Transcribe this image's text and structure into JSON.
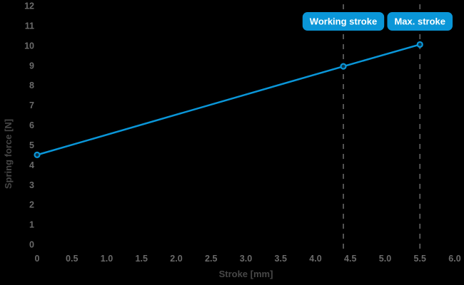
{
  "figure": {
    "background": "#000000"
  },
  "chart_data": {
    "type": "line",
    "title": "",
    "xlabel": "Stroke [mm]",
    "ylabel": "Spring force [N]",
    "xlim": [
      0,
      6.0
    ],
    "ylim": [
      0,
      12
    ],
    "grid": false,
    "legend": "none",
    "x_ticks": {
      "values": [
        0,
        0.5,
        1.0,
        1.5,
        2.0,
        2.5,
        3.0,
        3.5,
        4.0,
        4.5,
        5.0,
        5.5,
        6.0
      ],
      "labels": [
        "0",
        "0.5",
        "1.0",
        "1.5",
        "2.0",
        "2.5",
        "3.0",
        "3.5",
        "4.0",
        "4.5",
        "5.0",
        "5.5",
        "6.0"
      ]
    },
    "y_ticks": {
      "values": [
        0,
        1,
        2,
        3,
        4,
        5,
        6,
        7,
        8,
        9,
        10,
        11,
        12
      ],
      "labels": [
        "0",
        "1",
        "2",
        "3",
        "4",
        "5",
        "6",
        "7",
        "8",
        "9",
        "10",
        "11",
        "12"
      ]
    },
    "series": [
      {
        "name": "spring-force",
        "x": [
          0,
          4.4,
          5.5
        ],
        "y": [
          4.5,
          8.95,
          10.05
        ],
        "marker": "circle"
      }
    ],
    "annotations": [
      {
        "id": "working-stroke",
        "label": "Working stroke",
        "x": 4.4
      },
      {
        "id": "max-stroke",
        "label": "Max. stroke",
        "x": 5.5
      }
    ],
    "colors": {
      "line": "#0a96d8",
      "marker_fill": "#0b3145",
      "annotation_box": "#0a96d8",
      "annotation_text": "#ffffff",
      "tick_text": "#6a6a6a",
      "axis_title_text": "#474747",
      "dashed_line": "#525252",
      "background": "#000000"
    }
  }
}
